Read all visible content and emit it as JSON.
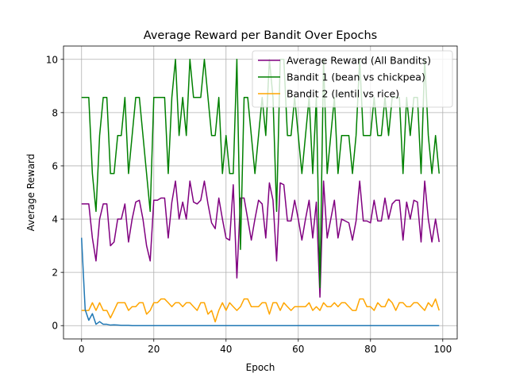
{
  "chart_data": {
    "type": "line",
    "title": "Average Reward per Bandit Over Epochs",
    "xlabel": "Epoch",
    "ylabel": "Average Reward",
    "xlim": [
      -5,
      104
    ],
    "ylim": [
      -0.5,
      10.5
    ],
    "xticks": [
      0,
      20,
      40,
      60,
      80,
      100
    ],
    "yticks": [
      0,
      2,
      4,
      6,
      8,
      10
    ],
    "grid": true,
    "legend_position": "top-right",
    "series": [
      {
        "name": "Average Reward (All Bandits)",
        "color": "#800080",
        "in_legend": true,
        "values": [
          4.57,
          4.57,
          4.57,
          3.29,
          2.43,
          4.0,
          4.57,
          4.57,
          3.0,
          3.14,
          4.0,
          4.0,
          4.57,
          3.14,
          4.0,
          4.64,
          4.71,
          4.0,
          3.0,
          2.43,
          4.71,
          4.71,
          4.79,
          4.79,
          3.29,
          4.64,
          5.43,
          4.0,
          4.64,
          4.0,
          5.43,
          4.64,
          4.57,
          4.71,
          5.43,
          4.57,
          3.86,
          3.64,
          4.79,
          4.0,
          3.29,
          3.21,
          5.29,
          1.79,
          4.79,
          4.79,
          4.0,
          3.21,
          4.0,
          4.71,
          4.57,
          3.29,
          5.36,
          4.71,
          2.43,
          5.36,
          5.29,
          3.93,
          3.93,
          4.71,
          4.0,
          3.21,
          4.0,
          4.71,
          3.29,
          4.64,
          1.07,
          5.43,
          3.29,
          4.0,
          4.71,
          3.29,
          4.0,
          3.93,
          3.86,
          3.21,
          3.93,
          5.43,
          3.93,
          3.93,
          3.86,
          4.71,
          3.93,
          3.93,
          4.79,
          4.0,
          4.57,
          4.71,
          4.71,
          3.21,
          4.64,
          4.0,
          4.71,
          4.64,
          3.14,
          5.43,
          4.0,
          3.14,
          4.0,
          3.14
        ]
      },
      {
        "name": "Bandit 1 (bean vs chickpea)",
        "color": "#008000",
        "in_legend": true,
        "values": [
          8.57,
          8.57,
          8.57,
          5.71,
          4.29,
          7.14,
          8.57,
          8.57,
          5.71,
          5.71,
          7.14,
          7.14,
          8.57,
          5.71,
          7.14,
          8.57,
          8.57,
          7.14,
          5.71,
          4.29,
          8.57,
          8.57,
          8.57,
          8.57,
          5.71,
          8.57,
          10.0,
          7.14,
          8.57,
          7.14,
          10.0,
          8.57,
          8.57,
          8.57,
          10.0,
          8.57,
          7.14,
          7.14,
          8.57,
          5.71,
          7.14,
          5.71,
          5.71,
          10.0,
          2.86,
          8.57,
          8.57,
          7.14,
          5.71,
          7.14,
          8.57,
          7.14,
          10.0,
          8.57,
          4.29,
          10.0,
          10.0,
          7.14,
          7.14,
          8.57,
          7.14,
          5.71,
          7.14,
          8.57,
          5.71,
          8.57,
          1.43,
          10.0,
          5.71,
          7.14,
          8.57,
          5.71,
          7.14,
          7.14,
          7.14,
          5.71,
          7.14,
          10.0,
          7.14,
          7.14,
          7.14,
          8.57,
          7.14,
          7.14,
          8.57,
          7.14,
          8.57,
          8.57,
          8.57,
          5.71,
          8.57,
          7.14,
          8.57,
          8.57,
          5.71,
          10.0,
          7.14,
          5.71,
          7.14,
          5.71
        ]
      },
      {
        "name": "Bandit 2 (lentil vs rice)",
        "color": "#FFA500",
        "in_legend": true,
        "values": [
          0.57,
          0.57,
          0.57,
          0.86,
          0.57,
          0.86,
          0.57,
          0.57,
          0.29,
          0.57,
          0.86,
          0.86,
          0.86,
          0.57,
          0.71,
          0.71,
          0.86,
          0.86,
          0.43,
          0.57,
          0.86,
          0.86,
          1.0,
          1.0,
          0.86,
          0.71,
          0.86,
          0.86,
          0.71,
          0.86,
          0.86,
          0.71,
          0.57,
          0.86,
          0.86,
          0.43,
          0.57,
          0.14,
          0.57,
          0.86,
          0.57,
          0.86,
          0.71,
          0.57,
          0.71,
          1.0,
          1.0,
          0.71,
          0.71,
          0.71,
          0.86,
          0.86,
          0.43,
          0.86,
          0.86,
          0.57,
          0.86,
          0.71,
          0.57,
          0.71,
          0.71,
          0.71,
          0.71,
          0.86,
          0.57,
          0.71,
          0.57,
          0.86,
          0.71,
          0.71,
          0.86,
          0.71,
          0.86,
          0.86,
          0.71,
          0.57,
          0.57,
          1.0,
          1.0,
          0.71,
          0.71,
          0.57,
          0.86,
          0.71,
          0.71,
          1.0,
          0.86,
          0.57,
          0.86,
          0.86,
          0.71,
          0.71,
          0.86,
          0.86,
          0.71,
          0.57,
          0.86,
          0.71,
          1.0,
          0.57
        ]
      },
      {
        "name": "",
        "color": "#1f77b4",
        "in_legend": false,
        "values": [
          3.3,
          0.6,
          0.2,
          0.45,
          0.05,
          0.15,
          0.05,
          0.05,
          0.02,
          0.03,
          0.02,
          0.01,
          0.01,
          0.01,
          0.0,
          0.0,
          0.0,
          0.0,
          0.0,
          0.0,
          0.0,
          0.0,
          0.0,
          0.0,
          0.0,
          0.0,
          0.0,
          0.0,
          0.0,
          0.0,
          0.0,
          0.0,
          0.0,
          0.0,
          0.0,
          0.0,
          0.0,
          0.0,
          0.0,
          0.0,
          0.0,
          0.0,
          0.0,
          0.0,
          0.0,
          0.0,
          0.0,
          0.0,
          0.0,
          0.0,
          0.0,
          0.0,
          0.0,
          0.0,
          0.0,
          0.0,
          0.0,
          0.0,
          0.0,
          0.0,
          0.0,
          0.0,
          0.0,
          0.0,
          0.0,
          0.0,
          0.0,
          0.0,
          0.0,
          0.0,
          0.0,
          0.0,
          0.0,
          0.0,
          0.0,
          0.0,
          0.0,
          0.0,
          0.0,
          0.0,
          0.0,
          0.0,
          0.0,
          0.0,
          0.0,
          0.0,
          0.0,
          0.0,
          0.0,
          0.0,
          0.0,
          0.0,
          0.0,
          0.0,
          0.0,
          0.0,
          0.0,
          0.0,
          0.0,
          0.0
        ]
      }
    ]
  }
}
